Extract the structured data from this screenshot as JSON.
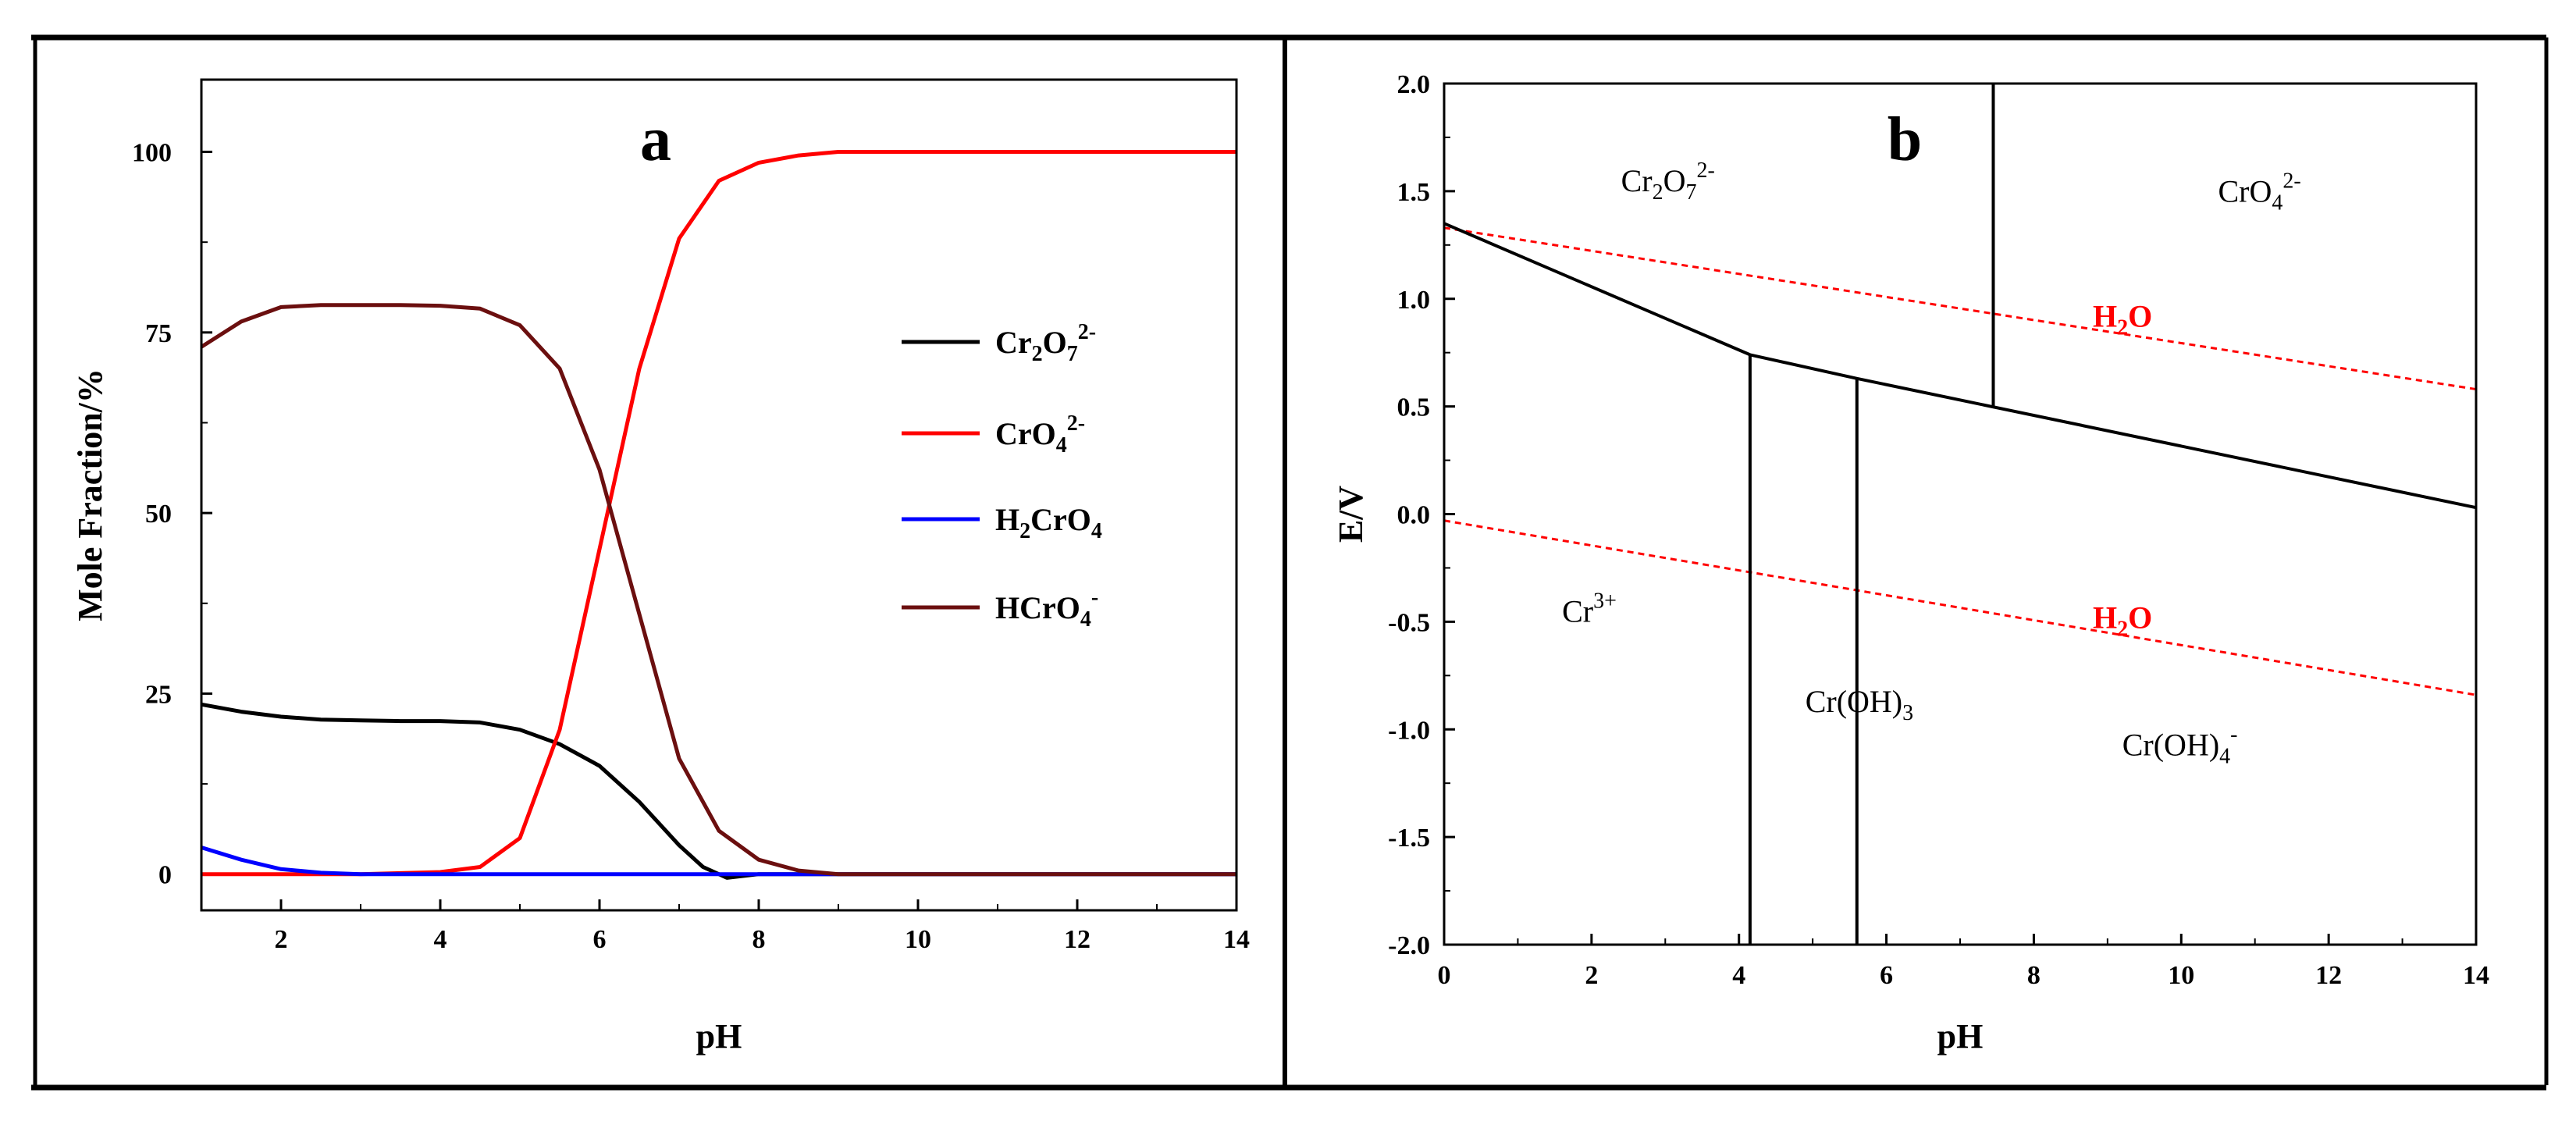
{
  "chart_data": [
    {
      "panel": "a",
      "type": "line",
      "xlabel": "pH",
      "ylabel": "Mole Fraction/%",
      "xlim": [
        1,
        14
      ],
      "ylim": [
        -5,
        110
      ],
      "xticks": [
        2,
        4,
        6,
        8,
        10,
        12,
        14
      ],
      "yticks": [
        0,
        25,
        50,
        75,
        100
      ],
      "legend_position": "right",
      "series": [
        {
          "name": "Cr2O7 2-",
          "base": "Cr",
          "sub1": "2",
          "mid": "O",
          "sub2": "7",
          "sup": "2-",
          "color": "#000000",
          "x": [
            1,
            1.5,
            2,
            2.5,
            3,
            3.5,
            4,
            4.5,
            5,
            5.5,
            6,
            6.5,
            7,
            7.3,
            7.6,
            8,
            9,
            10,
            12,
            14
          ],
          "y": [
            23.5,
            22.5,
            21.8,
            21.4,
            21.3,
            21.2,
            21.2,
            21,
            20,
            18,
            15,
            10,
            4,
            1,
            -0.5,
            0,
            0,
            0,
            0,
            0
          ]
        },
        {
          "name": "CrO4 2-",
          "base": "CrO",
          "sub1": "4",
          "sup": "2-",
          "color": "#ff0000",
          "x": [
            1,
            2,
            3,
            4,
            4.5,
            5,
            5.5,
            6,
            6.5,
            7,
            7.5,
            8,
            8.5,
            9,
            10,
            12,
            14
          ],
          "y": [
            0,
            0,
            0,
            0.3,
            1,
            5,
            20,
            45,
            70,
            88,
            96,
            98.5,
            99.5,
            100,
            100,
            100,
            100
          ]
        },
        {
          "name": "H2CrO4",
          "base": "H",
          "sub1": "2",
          "mid": "CrO",
          "sub2": "4",
          "color": "#0000ff",
          "x": [
            1,
            1.5,
            2,
            2.5,
            3,
            4,
            6,
            8,
            10,
            12,
            14
          ],
          "y": [
            3.7,
            2,
            0.7,
            0.2,
            0,
            0,
            0,
            0,
            0,
            0,
            0
          ]
        },
        {
          "name": "HCrO4 -",
          "base": "HCrO",
          "sub1": "4",
          "sup": "-",
          "color": "#6b0f0f",
          "x": [
            1,
            1.5,
            2,
            2.5,
            3,
            3.5,
            4,
            4.5,
            5,
            5.5,
            6,
            6.5,
            7,
            7.5,
            8,
            8.5,
            9,
            10,
            12,
            14
          ],
          "y": [
            73,
            76.5,
            78.5,
            78.8,
            78.8,
            78.8,
            78.7,
            78.3,
            76,
            70,
            56,
            36,
            16,
            6,
            2,
            0.5,
            0,
            0,
            0,
            0
          ]
        }
      ]
    },
    {
      "panel": "b",
      "type": "line",
      "xlabel": "pH",
      "ylabel": "E/V",
      "xlim": [
        0,
        14
      ],
      "ylim": [
        -2.0,
        2.0
      ],
      "xticks": [
        0,
        2,
        4,
        6,
        8,
        10,
        12,
        14
      ],
      "yticks": [
        "2.0",
        "1.5",
        "1.0",
        "0.5",
        "0.0",
        "-0.5",
        "-1.0",
        "-1.5",
        "-2.0"
      ],
      "boundaries": [
        {
          "x": [
            0,
            4.15,
            5.6,
            14
          ],
          "y": [
            1.35,
            0.74,
            0.63,
            0.03
          ]
        },
        {
          "x": [
            4.15,
            4.15
          ],
          "y": [
            0.74,
            -2.0
          ]
        },
        {
          "x": [
            5.6,
            5.6
          ],
          "y": [
            0.63,
            -2.0
          ]
        },
        {
          "x": [
            7.45,
            7.45
          ],
          "y": [
            2.0,
            0.5
          ]
        }
      ],
      "water_lines": {
        "color": "#ff0000",
        "upper": {
          "x": [
            0,
            14
          ],
          "y": [
            1.33,
            0.58
          ]
        },
        "lower": {
          "x": [
            0,
            14
          ],
          "y": [
            -0.03,
            -0.84
          ]
        }
      },
      "region_labels": [
        {
          "base": "Cr",
          "sub1": "2",
          "mid": "O",
          "sub2": "7",
          "sup": "2-",
          "x": 2.4,
          "y": 1.5
        },
        {
          "base": "CrO",
          "sub1": "4",
          "sup": "2-",
          "x": 10.5,
          "y": 1.45
        },
        {
          "base": "Cr",
          "sup": "3+",
          "x": 1.6,
          "y": -0.5
        },
        {
          "base": "Cr(OH)",
          "sub1": "3",
          "x": 4.9,
          "y": -0.92
        },
        {
          "base": "Cr(OH)",
          "sub1": "4",
          "sup": "-",
          "x": 9.2,
          "y": -1.12
        }
      ],
      "water_labels": [
        {
          "text": "H",
          "sub1": "2",
          "mid": "O",
          "x": 8.8,
          "y": 0.87
        },
        {
          "text": "H",
          "sub1": "2",
          "mid": "O",
          "x": 8.8,
          "y": -0.53
        }
      ]
    }
  ]
}
